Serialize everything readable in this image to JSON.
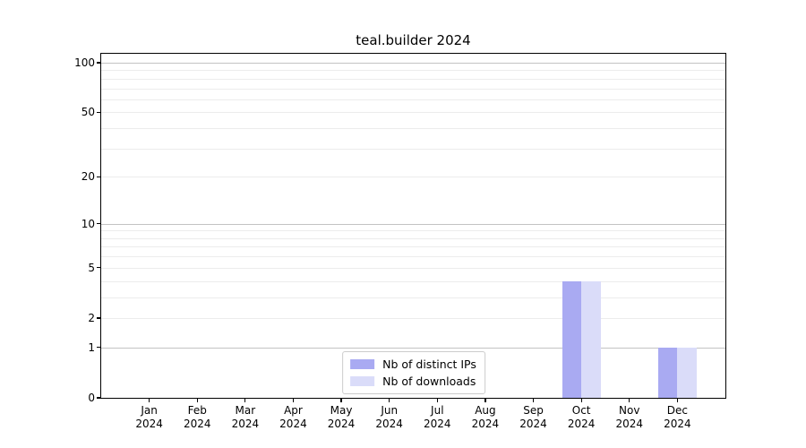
{
  "chart_data": {
    "type": "bar",
    "title": "teal.builder 2024",
    "categories": [
      "Jan",
      "Feb",
      "Mar",
      "Apr",
      "May",
      "Jun",
      "Jul",
      "Aug",
      "Sep",
      "Oct",
      "Nov",
      "Dec"
    ],
    "category_year": "2024",
    "series": [
      {
        "name": "Nb of distinct IPs",
        "color": "#a9aaf2",
        "values": [
          0,
          0,
          0,
          0,
          0,
          0,
          0,
          0,
          0,
          4,
          0,
          1
        ]
      },
      {
        "name": "Nb of downloads",
        "color": "#dadcf9",
        "values": [
          0,
          0,
          0,
          0,
          0,
          0,
          0,
          0,
          0,
          4,
          0,
          1
        ]
      }
    ],
    "y_axis": {
      "scale": "log1p",
      "tick_labels": [
        "0",
        "1",
        "2",
        "5",
        "10",
        "20",
        "50",
        "100"
      ],
      "tick_values": [
        0,
        1,
        2,
        5,
        10,
        20,
        50,
        100
      ],
      "major_grid_values": [
        1,
        10,
        100
      ],
      "minor_grid_values": [
        2,
        3,
        4,
        5,
        6,
        7,
        8,
        9,
        20,
        30,
        40,
        50,
        60,
        70,
        80,
        90
      ],
      "max_displayed": 100
    },
    "xlabel": "",
    "ylabel": "",
    "grid": true,
    "legend_position": "lower center",
    "colors": {
      "major_grid": "#c3c3c3",
      "minor_grid": "#ececec",
      "axis": "#000000",
      "background": "#ffffff"
    }
  }
}
